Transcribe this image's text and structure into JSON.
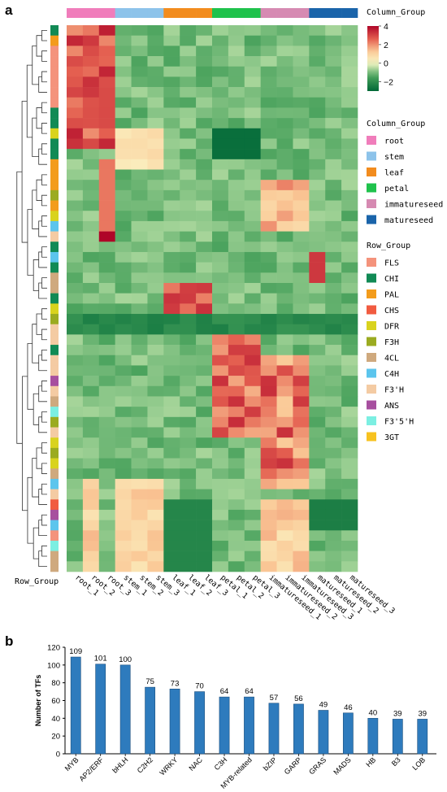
{
  "panel_labels": {
    "a": "a",
    "b": "b"
  },
  "heatmap": {
    "column_group_title_top": "Column_Group",
    "row_group_title_bottom": "Row_Group",
    "columns": [
      "root_1",
      "root_2",
      "root_3",
      "stem_1",
      "stem_2",
      "stem_3",
      "leaf_1",
      "leaf_2",
      "leaf_3",
      "petal_1",
      "petal_2",
      "petal_3",
      "immatureseed_1",
      "immatureseed_2",
      "immatureseed_3",
      "matureseed_1",
      "matureseed_2",
      "matureseed_3"
    ],
    "column_groups": [
      "root",
      "root",
      "root",
      "stem",
      "stem",
      "stem",
      "leaf",
      "leaf",
      "leaf",
      "petal",
      "petal",
      "petal",
      "immatureseed",
      "immatureseed",
      "immatureseed",
      "matureseed",
      "matureseed",
      "matureseed"
    ],
    "row_groups": [
      "CHI",
      "PAL",
      "FLS",
      "FLS",
      "FLS",
      "FLS",
      "FLS",
      "FLS",
      "CHI",
      "CHI",
      "DFR",
      "CHI",
      "CHI",
      "PAL",
      "PAL",
      "PAL",
      "F3H",
      "PAL",
      "DFR",
      "C4H",
      "F3'H",
      "CHI",
      "C4H",
      "CHI",
      "4CL",
      "4CL",
      "CHI",
      "DFR",
      "F3H",
      "F3'H",
      "F3'H",
      "CHI",
      "F3'H",
      "F3'H",
      "ANS",
      "F3'H",
      "4CL",
      "F3'5'H",
      "F3H",
      "F3'H",
      "DFR",
      "F3H",
      "DFR",
      "4CL",
      "C4H",
      "F3'H",
      "CHS",
      "ANS",
      "C4H",
      "FLS",
      "F3'5'H",
      "4CL",
      "4CL"
    ],
    "colorbar": {
      "max": 4,
      "ticks": [
        4,
        2,
        0,
        -2
      ],
      "min": -3
    },
    "column_legend": {
      "title": "Column_Group",
      "items": [
        {
          "label": "root",
          "color": "#f07dbb"
        },
        {
          "label": "stem",
          "color": "#8dc3ea"
        },
        {
          "label": "leaf",
          "color": "#f28c1e"
        },
        {
          "label": "petal",
          "color": "#1fc24c"
        },
        {
          "label": "immatureseed",
          "color": "#d68ab2"
        },
        {
          "label": "matureseed",
          "color": "#1a64aa"
        }
      ]
    },
    "row_legend": {
      "title": "Row_Group",
      "items": [
        {
          "label": "FLS",
          "color": "#f4937c"
        },
        {
          "label": "CHI",
          "color": "#118a55"
        },
        {
          "label": "PAL",
          "color": "#f39c1c"
        },
        {
          "label": "CHS",
          "color": "#f15b40"
        },
        {
          "label": "DFR",
          "color": "#d9d31e"
        },
        {
          "label": "F3H",
          "color": "#9bab21"
        },
        {
          "label": "4CL",
          "color": "#cfa97e"
        },
        {
          "label": "C4H",
          "color": "#5cc5ed"
        },
        {
          "label": "F3'H",
          "color": "#f4cba3"
        },
        {
          "label": "ANS",
          "color": "#a74f9f"
        },
        {
          "label": "F3'5'H",
          "color": "#7cefe2"
        },
        {
          "label": "3GT",
          "color": "#f7c21f"
        }
      ]
    }
  },
  "chart_data": {
    "type": "bar",
    "categories": [
      "MYB",
      "AP2/ERF",
      "bHLH",
      "C2H2",
      "WRKY",
      "NAC",
      "C3H",
      "MYB-related",
      "bZIP",
      "GARP",
      "GRAS",
      "MADS",
      "HB",
      "B3",
      "LOB"
    ],
    "values": [
      109,
      101,
      100,
      75,
      73,
      70,
      64,
      64,
      57,
      56,
      49,
      46,
      40,
      39,
      39
    ],
    "xlabel": "",
    "ylabel": "Number of TFs",
    "ylim": [
      0,
      120
    ],
    "yticks": [
      0,
      20,
      40,
      60,
      80,
      100,
      120
    ],
    "bar_color": "#2e7bbd",
    "data_labels": true
  }
}
